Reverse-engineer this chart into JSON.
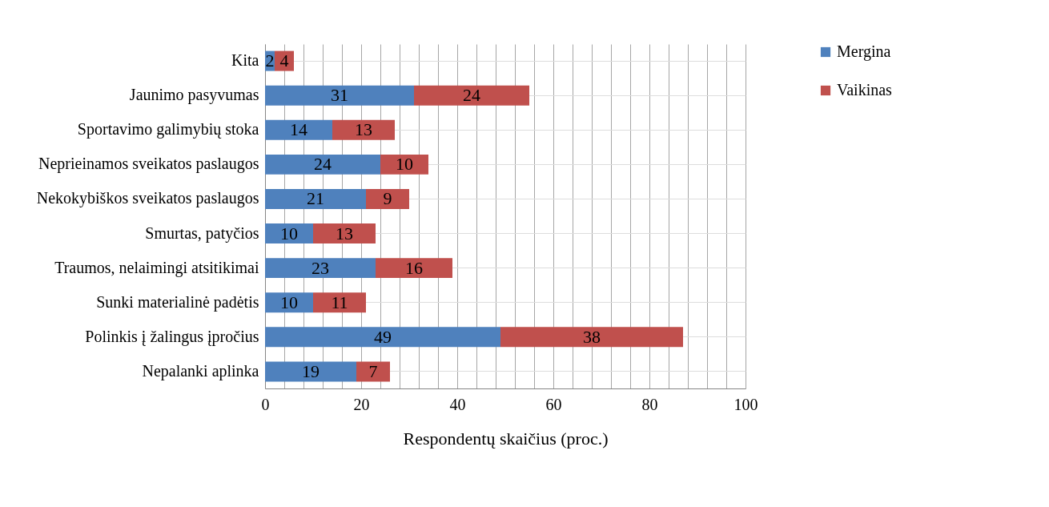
{
  "chart_data": {
    "type": "bar",
    "orientation": "horizontal",
    "stacked": true,
    "xlabel": "Respondentų skaičius (proc.)",
    "categories": [
      "Kita",
      "Jaunimo pasyvumas",
      "Sportavimo galimybių stoka",
      "Neprieinamos sveikatos paslaugos",
      "Nekokybiškos sveikatos paslaugos",
      "Smurtas, patyčios",
      "Traumos, nelaimingi atsitikimai",
      "Sunki materialinė padėtis",
      "Polinkis į žalingus įpročius",
      "Nepalanki aplinka"
    ],
    "series": [
      {
        "name": "Mergina",
        "color": "#4f81bd",
        "values": [
          2,
          31,
          14,
          24,
          21,
          10,
          23,
          10,
          49,
          19
        ]
      },
      {
        "name": "Vaikinas",
        "color": "#c0504d",
        "values": [
          4,
          24,
          13,
          10,
          9,
          13,
          16,
          11,
          38,
          7
        ]
      }
    ],
    "xlim": [
      0,
      100
    ],
    "xticks": [
      0,
      {
        "value": 4,
        "label": null
      },
      {
        "value": 8,
        "label": null
      },
      {
        "value": 12,
        "label": null
      },
      {
        "value": 16,
        "label": null
      },
      20,
      {
        "value": 24,
        "label": null
      },
      {
        "value": 28,
        "label": null
      },
      {
        "value": 32,
        "label": null
      },
      {
        "value": 36,
        "label": null
      },
      40,
      {
        "value": 44,
        "label": null
      },
      {
        "value": 48,
        "label": null
      },
      {
        "value": 52,
        "label": null
      },
      {
        "value": 56,
        "label": null
      },
      60,
      {
        "value": 64,
        "label": null
      },
      {
        "value": 68,
        "label": null
      },
      {
        "value": 72,
        "label": null
      },
      {
        "value": 76,
        "label": null
      },
      80,
      {
        "value": 84,
        "label": null
      },
      {
        "value": 88,
        "label": null
      },
      {
        "value": 92,
        "label": null
      },
      {
        "value": 96,
        "label": null
      },
      100
    ],
    "grid": true,
    "legend": "right",
    "data_labels": true
  }
}
